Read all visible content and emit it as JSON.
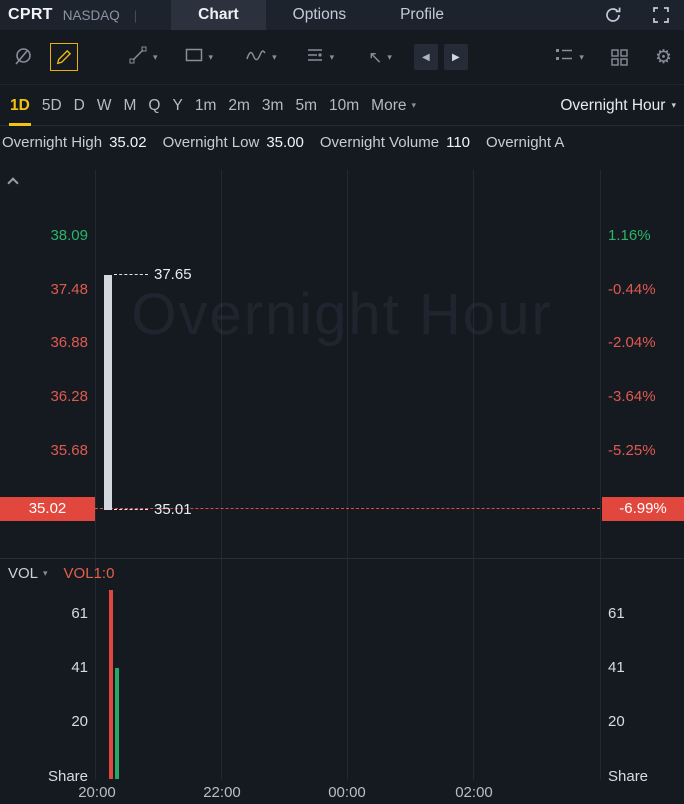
{
  "colors": {
    "background": "#151a21",
    "green": "#2bb56a",
    "red": "#e05950",
    "badge_red": "#e2473d",
    "accent_yellow": "#f2c411",
    "volume_red": "#e0473e",
    "volume_green": "#27a865"
  },
  "icons": {
    "caret_down": "▾",
    "arrow_left": "◀",
    "arrow_right": "▶",
    "arrow_tool": "↖",
    "gear": "⚙"
  },
  "header": {
    "symbol": "CPRT",
    "exchange": "NASDAQ",
    "pipe": "|",
    "tabs": [
      {
        "label": "Chart",
        "active": true
      },
      {
        "label": "Options",
        "active": false
      },
      {
        "label": "Profile",
        "active": false
      }
    ]
  },
  "timeframe_bar": {
    "items": [
      "1D",
      "5D",
      "D",
      "W",
      "M",
      "Q",
      "Y",
      "1m",
      "2m",
      "3m",
      "5m",
      "10m"
    ],
    "active": "1D",
    "more": "More",
    "session": "Overnight Hour"
  },
  "info_bar": {
    "high_label": "Overnight High",
    "high_value": "35.02",
    "low_label": "Overnight Low",
    "low_value": "35.00",
    "volume_label": "Overnight Volume",
    "volume_value": "110",
    "truncated_label": "Overnight A"
  },
  "main_chart": {
    "watermark": "Overnight Hour",
    "price_ticks": [
      "38.09",
      "37.48",
      "36.88",
      "36.28",
      "35.68"
    ],
    "price_badge": "35.02",
    "pct_ticks": [
      "1.16%",
      "-0.44%",
      "-2.04%",
      "-3.64%",
      "-5.25%"
    ],
    "pct_badge": "-6.99%",
    "candle_high_label": "37.65",
    "candle_low_label": "35.01"
  },
  "volume_panel": {
    "indicator_label": "VOL",
    "series_label": "VOL1:0",
    "ticks": [
      "61",
      "41",
      "20"
    ],
    "unit_left": "Share",
    "unit_right": "Share"
  },
  "time_axis": [
    "20:00",
    "22:00",
    "00:00",
    "02:00"
  ],
  "chart_data": {
    "type": "candlestick",
    "symbol": "CPRT",
    "exchange": "NASDAQ",
    "session": "Overnight Hour",
    "timeframe": "1D",
    "title": "CPRT Overnight Hour chart",
    "price_axis_ticks": [
      38.09,
      37.48,
      36.88,
      36.28,
      35.68,
      35.02
    ],
    "percent_axis_ticks": [
      1.16,
      -0.44,
      -2.04,
      -3.64,
      -5.25,
      -6.99
    ],
    "x_ticks": [
      "20:00",
      "22:00",
      "00:00",
      "02:00"
    ],
    "candles": [
      {
        "x": "20:00",
        "high": 37.65,
        "low": 35.01
      }
    ],
    "last_price": 35.02,
    "last_change_percent": -6.99,
    "overnight_high": 35.02,
    "overnight_low": 35.0,
    "overnight_volume": 110,
    "grid": true,
    "volume_pane": {
      "indicator": "VOL1:0",
      "ticks": [
        61,
        41,
        20
      ],
      "unit": "Share",
      "bars": [
        {
          "x": "20:00",
          "value": 70,
          "color": "red"
        },
        {
          "x": "20:00",
          "value": 41,
          "color": "green"
        }
      ]
    }
  }
}
